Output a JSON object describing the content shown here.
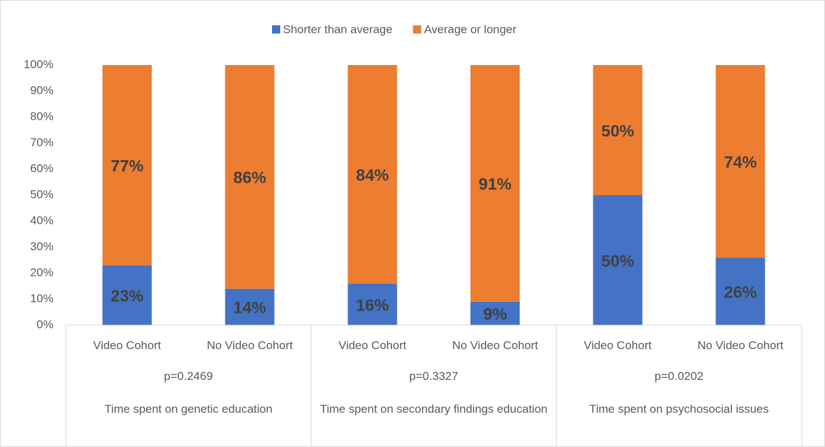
{
  "chart_data": {
    "type": "stacked_bar",
    "categories": [
      "Video Cohort",
      "No Video Cohort",
      "Video Cohort",
      "No Video Cohort",
      "Video Cohort",
      "No Video Cohort"
    ],
    "groups": [
      {
        "p": "p=0.2469",
        "label": "Time spent on genetic education"
      },
      {
        "p": "p=0.3327",
        "label": "Time spent on secondary findings education"
      },
      {
        "p": "p=0.0202",
        "label": "Time spent on psychosocial issues"
      }
    ],
    "series": [
      {
        "name": "Shorter than average",
        "color": "#4472c4",
        "values": [
          23,
          14,
          16,
          9,
          50,
          26
        ],
        "value_labels": [
          "23%",
          "14%",
          "16%",
          "9%",
          "50%",
          "26%"
        ]
      },
      {
        "name": "Average or longer",
        "color": "#ed7d31",
        "values": [
          77,
          86,
          84,
          91,
          50,
          74
        ],
        "value_labels": [
          "77%",
          "86%",
          "84%",
          "91%",
          "50%",
          "74%"
        ]
      }
    ],
    "ylim": [
      0,
      100
    ],
    "yticks": [
      {
        "value": 0,
        "label": "0%"
      },
      {
        "value": 10,
        "label": "10%"
      },
      {
        "value": 20,
        "label": "20%"
      },
      {
        "value": 30,
        "label": "30%"
      },
      {
        "value": 40,
        "label": "40%"
      },
      {
        "value": 50,
        "label": "50%"
      },
      {
        "value": 60,
        "label": "60%"
      },
      {
        "value": 70,
        "label": "70%"
      },
      {
        "value": 80,
        "label": "80%"
      },
      {
        "value": 90,
        "label": "90%"
      },
      {
        "value": 100,
        "label": "100%"
      }
    ],
    "grid": false,
    "legend": "top"
  }
}
